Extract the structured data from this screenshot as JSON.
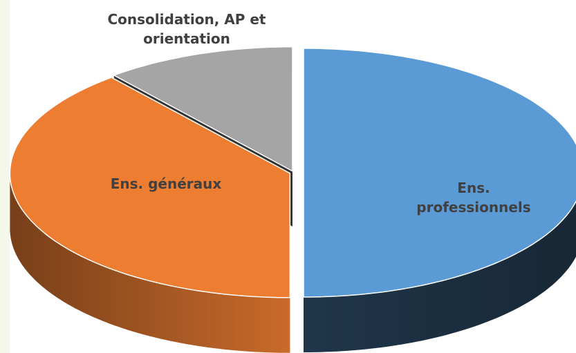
{
  "chart_data": {
    "type": "pie",
    "categories": [
      "Ens. professionnels",
      "Ens. généraux",
      "Consolidation, AP et orientation"
    ],
    "values": [
      50,
      39,
      11
    ],
    "colors": [
      "#5b9bd5",
      "#ed7d31",
      "#a5a5a5"
    ]
  }
}
